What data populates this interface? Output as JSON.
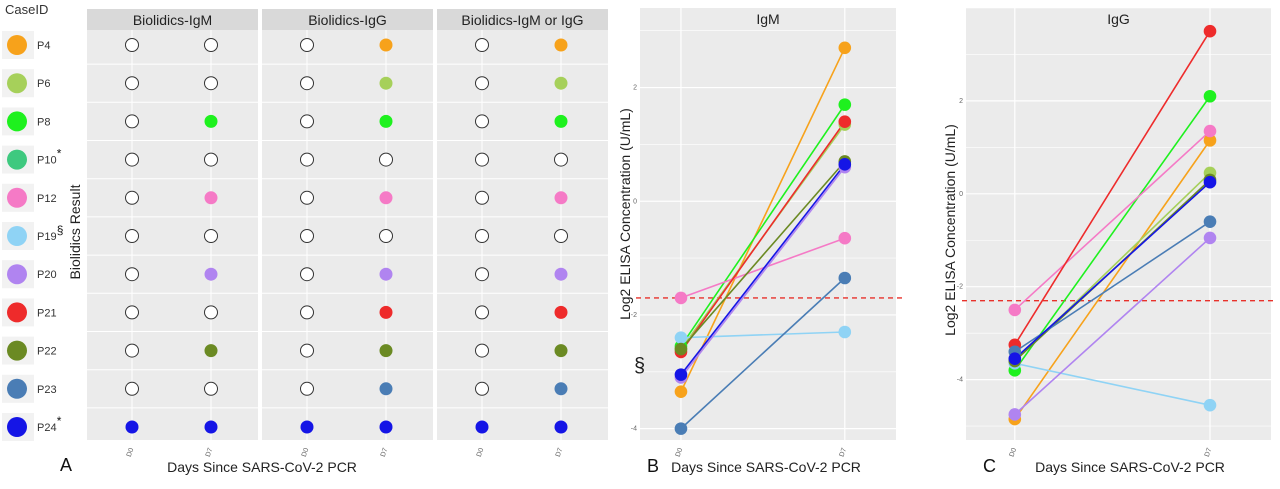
{
  "colors": {
    "panel_bg": "#ebebeb",
    "strip_bg": "#d9d9d9",
    "grid": "#ffffff",
    "threshold": "#e8312a",
    "empty_fill": "#ffffff",
    "empty_stroke": "#333333"
  },
  "cases": [
    {
      "id": "P4",
      "mark": "",
      "color": "#f7a21b"
    },
    {
      "id": "P6",
      "mark": "",
      "color": "#a6d05a"
    },
    {
      "id": "P8",
      "mark": "",
      "color": "#1ef11e"
    },
    {
      "id": "P10",
      "mark": "*",
      "color": "#3ec97f"
    },
    {
      "id": "P12",
      "mark": "",
      "color": "#f57ac6"
    },
    {
      "id": "P19",
      "mark": "§",
      "color": "#8fd3f5"
    },
    {
      "id": "P20",
      "mark": "",
      "color": "#b084f0"
    },
    {
      "id": "P21",
      "mark": "",
      "color": "#ee2b2b"
    },
    {
      "id": "P22",
      "mark": "",
      "color": "#6b8a23"
    },
    {
      "id": "P23",
      "mark": "",
      "color": "#4a7db5"
    },
    {
      "id": "P24",
      "mark": "*",
      "color": "#1515e6"
    }
  ],
  "chart_data": [
    {
      "type": "scatter",
      "panel_letter": "A",
      "legend_title": "CaseID",
      "ylabel": "Biolidics Result",
      "xlabel": "Days Since SARS-CoV-2 PCR",
      "x": [
        "D0",
        "D7"
      ],
      "facets": [
        {
          "title": "Biolidics-IgM",
          "positive": {
            "D0": [
              "P24"
            ],
            "D7": [
              "P8",
              "P12",
              "P20",
              "P22",
              "P24"
            ]
          }
        },
        {
          "title": "Biolidics-IgG",
          "positive": {
            "D0": [
              "P24"
            ],
            "D7": [
              "P4",
              "P6",
              "P8",
              "P12",
              "P20",
              "P21",
              "P22",
              "P23",
              "P24"
            ]
          }
        },
        {
          "title": "Biolidics-IgM or IgG",
          "positive": {
            "D0": [
              "P24"
            ],
            "D7": [
              "P4",
              "P6",
              "P8",
              "P12",
              "P20",
              "P21",
              "P22",
              "P23",
              "P24"
            ]
          }
        }
      ]
    },
    {
      "type": "line",
      "panel_letter": "B",
      "title": "IgM",
      "ylabel": "Log2 ELISA Concentration (U/mL)",
      "xlabel": "Days Since SARS-CoV-2 PCR",
      "x": [
        "D0",
        "D7"
      ],
      "ylim": [
        -4.2,
        3.4
      ],
      "yticks": [
        -4,
        -2,
        0,
        2
      ],
      "threshold": -1.7,
      "annotation": "§",
      "series": [
        {
          "case": "P4",
          "values": [
            -3.35,
            2.7
          ]
        },
        {
          "case": "P6",
          "values": [
            -2.6,
            1.35
          ]
        },
        {
          "case": "P8",
          "values": [
            -2.55,
            1.7
          ]
        },
        {
          "case": "P12",
          "values": [
            -1.7,
            -0.65
          ]
        },
        {
          "case": "P19",
          "values": [
            -2.4,
            -2.3
          ]
        },
        {
          "case": "P20",
          "values": [
            -3.1,
            0.6
          ]
        },
        {
          "case": "P21",
          "values": [
            -2.65,
            1.4
          ]
        },
        {
          "case": "P22",
          "values": [
            -2.6,
            0.7
          ]
        },
        {
          "case": "P23",
          "values": [
            -4.0,
            -1.35
          ]
        },
        {
          "case": "P24",
          "values": [
            -3.05,
            0.65
          ]
        }
      ]
    },
    {
      "type": "line",
      "panel_letter": "C",
      "title": "IgG",
      "ylabel": "Log2 ELISA Concentration (U/mL)",
      "xlabel": "Days Since SARS-CoV-2 PCR",
      "x": [
        "D0",
        "D7"
      ],
      "ylim": [
        -5.3,
        4.0
      ],
      "yticks": [
        -4,
        -2,
        0,
        2
      ],
      "threshold": -2.3,
      "series": [
        {
          "case": "P4",
          "values": [
            -4.85,
            1.15
          ]
        },
        {
          "case": "P6",
          "values": [
            -3.6,
            0.45
          ]
        },
        {
          "case": "P8",
          "values": [
            -3.8,
            2.1
          ]
        },
        {
          "case": "P12",
          "values": [
            -2.5,
            1.35
          ]
        },
        {
          "case": "P19",
          "values": [
            -3.65,
            -4.55
          ]
        },
        {
          "case": "P20",
          "values": [
            -4.75,
            -0.95
          ]
        },
        {
          "case": "P21",
          "values": [
            -3.25,
            3.5
          ]
        },
        {
          "case": "P22",
          "values": [
            -3.6,
            0.3
          ]
        },
        {
          "case": "P23",
          "values": [
            -3.4,
            -0.6
          ]
        },
        {
          "case": "P24",
          "values": [
            -3.55,
            0.25
          ]
        }
      ]
    }
  ]
}
